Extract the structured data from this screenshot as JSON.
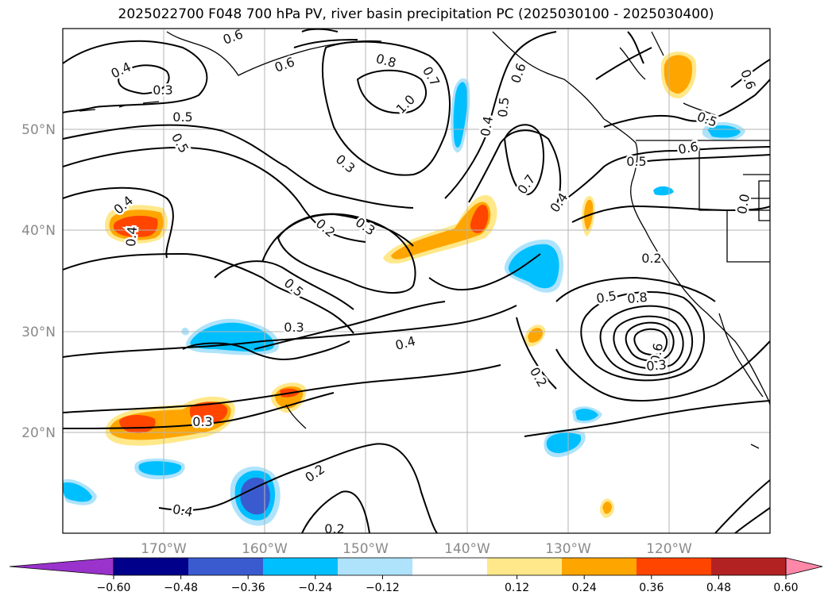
{
  "title": "2025022700 F048 700 hPa PV, river basin precipitation PC (2025030100 - 2025030400)",
  "map": {
    "lat_labels": [
      "50°N",
      "40°N",
      "30°N",
      "20°N"
    ],
    "lon_labels": [
      "170°W",
      "160°W",
      "150°W",
      "140°W",
      "130°W",
      "120°W"
    ],
    "contour_labels": [
      "0.6",
      "0.4",
      "0.3",
      "0.5",
      "0.6",
      "0.8",
      "1.0",
      "0.7",
      "0.5",
      "0.4",
      "0.7",
      "0.4",
      "0.6",
      "0.5",
      "0.6",
      "0.5",
      "0.6",
      "0.5",
      "0.3",
      "0.4",
      "0.2",
      "0.3",
      "0.4",
      "0.5",
      "0.3",
      "0.4",
      "0.5",
      "0.8",
      "0.6",
      "0.3",
      "0.2",
      "0.3",
      "0.2",
      "0.4",
      "0.2",
      "0.0",
      "0.2"
    ]
  },
  "colorbar": {
    "ticks": [
      "−0.60",
      "−0.48",
      "−0.36",
      "−0.24",
      "−0.12",
      "0.12",
      "0.24",
      "0.36",
      "0.48",
      "0.60"
    ],
    "colors": [
      "#9933cc",
      "#00008b",
      "#3a5bd0",
      "#00bfff",
      "#aee3fb",
      "#ffffff",
      "#ffe88a",
      "#ffa500",
      "#ff4500",
      "#b22222",
      "#ff88a8"
    ]
  }
}
